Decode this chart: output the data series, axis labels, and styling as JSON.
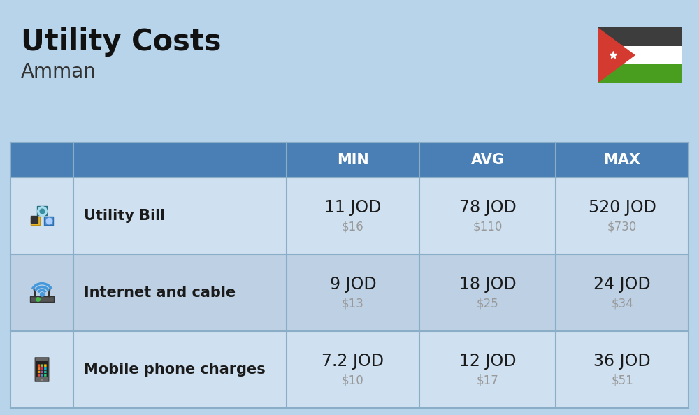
{
  "title": "Utility Costs",
  "subtitle": "Amman",
  "background_color": "#b8d4ea",
  "header_bg_color": "#4a7fb5",
  "header_text_color": "#ffffff",
  "row_bg_color_1": "#cfe0f0",
  "row_bg_color_2": "#bdd0e4",
  "table_border_color": "#8aaec8",
  "col_headers": [
    "MIN",
    "AVG",
    "MAX"
  ],
  "rows": [
    {
      "label": "Utility Bill",
      "min_jod": "11 JOD",
      "min_usd": "$16",
      "avg_jod": "78 JOD",
      "avg_usd": "$110",
      "max_jod": "520 JOD",
      "max_usd": "$730"
    },
    {
      "label": "Internet and cable",
      "min_jod": "9 JOD",
      "min_usd": "$13",
      "avg_jod": "18 JOD",
      "avg_usd": "$25",
      "max_jod": "24 JOD",
      "max_usd": "$34"
    },
    {
      "label": "Mobile phone charges",
      "min_jod": "7.2 JOD",
      "min_usd": "$10",
      "avg_jod": "12 JOD",
      "avg_usd": "$17",
      "max_jod": "36 JOD",
      "max_usd": "$51"
    }
  ],
  "jod_fontsize": 17,
  "usd_fontsize": 12,
  "label_fontsize": 15,
  "header_fontsize": 15,
  "title_fontsize": 30,
  "subtitle_fontsize": 20,
  "usd_color": "#999999",
  "cell_text_color": "#1a1a1a",
  "flag_colors": {
    "black": "#3d3d3d",
    "white": "#ffffff",
    "green": "#4a9e1f",
    "red": "#d43a2f"
  }
}
